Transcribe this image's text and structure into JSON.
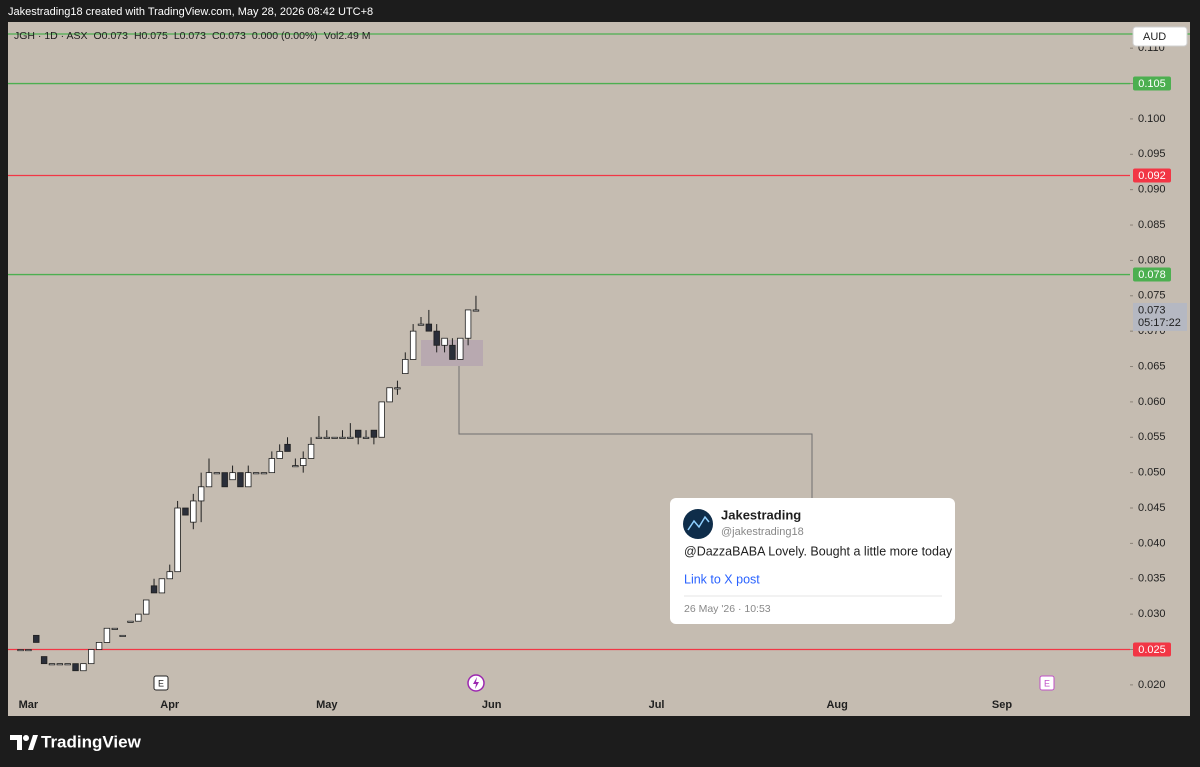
{
  "header": {
    "text": "Jakestrading18 created with TradingView.com, May 28, 2026 08:42 UTC+8"
  },
  "chart_data": {
    "type": "candlestick",
    "legend": [
      "JGH · 1D · ASX",
      "O0.073",
      "H0.075",
      "L0.073",
      "C0.073",
      "0.000 (0.00%)",
      "Vol2.49 M"
    ],
    "currency": "AUD",
    "x": [
      -19,
      -18,
      -17,
      -16,
      -15,
      -14,
      -13,
      -12,
      -11,
      -10,
      -9,
      -8,
      -7,
      -6,
      -5,
      -4,
      -3,
      -2,
      -1,
      0,
      1,
      2,
      3,
      4,
      5,
      6,
      7,
      8,
      9,
      10,
      11,
      12,
      13,
      14,
      15,
      16,
      17,
      18,
      19,
      20,
      21,
      22,
      23,
      24,
      25,
      26,
      27,
      28,
      29,
      30,
      31,
      32,
      33,
      34,
      35,
      36,
      37,
      38,
      39
    ],
    "open": [
      0.025,
      0.025,
      0.027,
      0.024,
      0.023,
      0.023,
      0.023,
      0.023,
      0.022,
      0.023,
      0.025,
      0.026,
      0.028,
      0.027,
      0.029,
      0.029,
      0.03,
      0.034,
      0.033,
      0.035,
      0.036,
      0.045,
      0.043,
      0.046,
      0.048,
      0.05,
      0.05,
      0.049,
      0.05,
      0.048,
      0.05,
      0.05,
      0.05,
      0.052,
      0.054,
      0.051,
      0.051,
      0.052,
      0.055,
      0.055,
      0.055,
      0.055,
      0.055,
      0.056,
      0.055,
      0.056,
      0.055,
      0.06,
      0.062,
      0.064,
      0.066,
      0.071,
      0.071,
      0.07,
      0.068,
      0.068,
      0.066,
      0.069,
      0.073
    ],
    "high": [
      0.025,
      0.025,
      0.027,
      0.024,
      0.023,
      0.023,
      0.023,
      0.023,
      0.023,
      0.025,
      0.026,
      0.028,
      0.028,
      0.027,
      0.029,
      0.03,
      0.032,
      0.035,
      0.035,
      0.037,
      0.046,
      0.045,
      0.047,
      0.05,
      0.052,
      0.05,
      0.05,
      0.051,
      0.05,
      0.051,
      0.05,
      0.05,
      0.053,
      0.054,
      0.055,
      0.052,
      0.053,
      0.055,
      0.058,
      0.056,
      0.055,
      0.056,
      0.057,
      0.056,
      0.056,
      0.056,
      0.06,
      0.062,
      0.063,
      0.067,
      0.071,
      0.072,
      0.073,
      0.071,
      0.069,
      0.069,
      0.069,
      0.073,
      0.075
    ],
    "low": [
      0.025,
      0.025,
      0.026,
      0.023,
      0.023,
      0.023,
      0.023,
      0.022,
      0.022,
      0.023,
      0.025,
      0.026,
      0.028,
      0.027,
      0.029,
      0.029,
      0.03,
      0.033,
      0.033,
      0.035,
      0.036,
      0.044,
      0.042,
      0.043,
      0.048,
      0.05,
      0.048,
      0.049,
      0.048,
      0.048,
      0.05,
      0.05,
      0.05,
      0.052,
      0.053,
      0.051,
      0.05,
      0.052,
      0.055,
      0.055,
      0.055,
      0.055,
      0.055,
      0.054,
      0.055,
      0.054,
      0.055,
      0.06,
      0.061,
      0.064,
      0.066,
      0.071,
      0.07,
      0.067,
      0.067,
      0.066,
      0.066,
      0.068,
      0.073
    ],
    "close": [
      0.025,
      0.025,
      0.026,
      0.023,
      0.023,
      0.023,
      0.023,
      0.022,
      0.023,
      0.025,
      0.026,
      0.028,
      0.028,
      0.027,
      0.029,
      0.03,
      0.032,
      0.033,
      0.035,
      0.036,
      0.045,
      0.044,
      0.046,
      0.048,
      0.05,
      0.05,
      0.048,
      0.05,
      0.048,
      0.05,
      0.05,
      0.05,
      0.052,
      0.053,
      0.053,
      0.051,
      0.052,
      0.054,
      0.055,
      0.055,
      0.055,
      0.055,
      0.055,
      0.055,
      0.055,
      0.055,
      0.06,
      0.062,
      0.062,
      0.066,
      0.07,
      0.071,
      0.07,
      0.068,
      0.069,
      0.066,
      0.069,
      0.073,
      0.073
    ],
    "up_color": "#ffffff",
    "down_color": "#2a2e39",
    "xlim": [
      -20.6,
      122.3
    ],
    "xticks": [
      {
        "value": -18,
        "label": "Mar"
      },
      {
        "value": 0,
        "label": "Apr"
      },
      {
        "value": 20,
        "label": "May"
      },
      {
        "value": 41,
        "label": "Jun"
      },
      {
        "value": 62,
        "label": "Jul"
      },
      {
        "value": 85,
        "label": "Aug"
      },
      {
        "value": 106,
        "label": "Sep"
      }
    ],
    "ylim": [
      0.0156,
      0.1137
    ],
    "yticks": [
      {
        "value": 0.02,
        "label": "0.020"
      },
      0.025,
      {
        "value": 0.03,
        "label": "0.030"
      },
      0.035,
      {
        "value": 0.04,
        "label": "0.040"
      },
      0.045,
      {
        "value": 0.05,
        "label": "0.050"
      },
      0.055,
      {
        "value": 0.06,
        "label": "0.060"
      },
      0.065,
      {
        "value": 0.07,
        "label": "0.070"
      },
      0.075,
      {
        "value": 0.08,
        "label": "0.080"
      },
      0.085,
      {
        "value": 0.09,
        "label": "0.090"
      },
      0.095,
      {
        "value": 0.1,
        "label": "0.100"
      },
      0.105,
      {
        "value": 0.11,
        "label": "0.110"
      }
    ],
    "hlines": [
      {
        "value": 0.112,
        "color": "#4caf50"
      },
      {
        "value": 0.105,
        "color": "#4caf50"
      },
      {
        "value": 0.092,
        "color": "#f23645"
      },
      {
        "value": 0.078,
        "color": "#4caf50"
      },
      {
        "value": 0.025,
        "color": "#f23645"
      }
    ],
    "last_price": {
      "value": 0.073,
      "countdown": "05:17:22"
    }
  },
  "tweet": {
    "name": "Jakestrading",
    "handle": "@jakestrading18",
    "text": "@DazzaBABA Lovely. Bought a little more today",
    "link": "Link to X post",
    "date": "26 May '26 · 10:53"
  },
  "footer": {
    "brand": "TradingView"
  }
}
